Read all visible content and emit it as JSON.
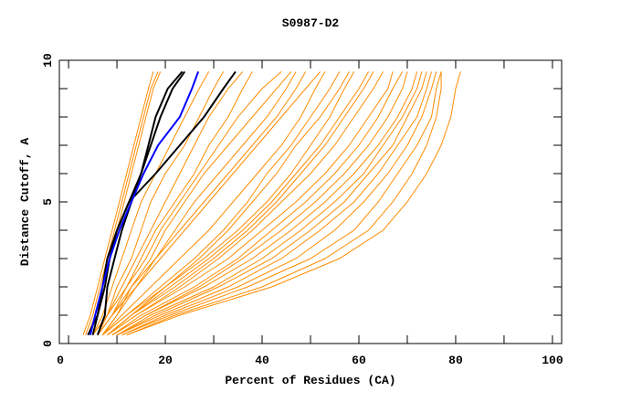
{
  "chart_data": {
    "type": "line",
    "title": "S0987-D2",
    "xlabel": "Percent of Residues (CA)",
    "ylabel": "Distance Cutoff, A",
    "xlim": [
      -1.9,
      101.9
    ],
    "ylim": [
      0,
      10
    ],
    "xticks": [
      0,
      20,
      40,
      60,
      80,
      100
    ],
    "xtick_labels": [
      "0",
      "20",
      "40",
      "60",
      "80",
      "100"
    ],
    "yticks": [
      0,
      5,
      10
    ],
    "ytick_labels": [
      "0",
      "5",
      "10"
    ],
    "grid": false,
    "colors": {
      "others": "#ff8c00",
      "highlight_black": "#000000",
      "highlight_blue": "#0000ff"
    },
    "y_levels": [
      0.3,
      1,
      2,
      3,
      4,
      5,
      6,
      7,
      8,
      9,
      9.6
    ],
    "series": [
      {
        "color": "orange",
        "x": [
          3,
          4.5,
          6,
          7.5,
          9,
          10.5,
          12,
          13.5,
          15,
          16.5,
          17.5
        ]
      },
      {
        "color": "orange",
        "x": [
          3.5,
          5,
          6.5,
          8,
          9.5,
          11,
          12.5,
          14,
          15.5,
          17,
          18.5
        ]
      },
      {
        "color": "orange",
        "x": [
          4,
          5.5,
          7,
          8.5,
          10,
          11.5,
          13,
          14.5,
          16,
          17.5,
          19
        ]
      },
      {
        "color": "orange",
        "x": [
          5,
          7,
          9,
          11,
          13,
          15,
          18,
          21,
          24,
          27,
          29
        ]
      },
      {
        "color": "orange",
        "x": [
          5,
          8,
          10,
          13,
          15,
          17,
          20,
          24,
          27,
          30,
          32
        ]
      },
      {
        "color": "orange",
        "x": [
          6,
          8,
          11,
          14,
          17,
          20,
          23,
          26,
          29,
          33,
          36
        ]
      },
      {
        "color": "orange",
        "x": [
          6,
          9,
          12,
          15,
          18,
          22,
          26,
          29,
          33,
          36,
          38
        ]
      },
      {
        "color": "orange",
        "x": [
          6,
          9,
          13,
          17,
          20,
          24,
          28,
          33,
          38,
          43,
          46
        ]
      },
      {
        "color": "orange",
        "x": [
          7,
          10,
          14,
          18,
          22,
          26,
          31,
          36,
          41,
          45,
          47
        ]
      },
      {
        "color": "orange",
        "x": [
          7,
          10,
          13,
          18,
          23,
          28,
          33,
          38,
          43,
          47,
          49
        ]
      },
      {
        "color": "orange",
        "x": [
          7,
          11,
          17,
          23,
          29,
          34,
          39,
          44,
          48,
          51,
          53
        ]
      },
      {
        "color": "orange",
        "x": [
          7,
          12,
          19,
          26,
          32,
          37,
          41,
          46,
          50,
          54,
          56
        ]
      },
      {
        "color": "orange",
        "x": [
          7,
          12,
          20,
          28,
          35,
          41,
          46,
          50,
          54,
          57,
          59
        ]
      },
      {
        "color": "orange",
        "x": [
          8,
          13,
          22,
          30,
          37,
          43,
          48,
          53,
          57,
          61,
          63
        ]
      },
      {
        "color": "orange",
        "x": [
          8,
          14,
          23,
          31,
          38,
          44,
          50,
          55,
          59,
          63,
          65
        ]
      },
      {
        "color": "orange",
        "x": [
          8,
          14,
          24,
          33,
          40,
          47,
          53,
          58,
          62,
          66,
          67
        ]
      },
      {
        "color": "orange",
        "x": [
          9,
          15,
          26,
          35,
          42,
          49,
          55,
          60,
          64,
          67,
          69
        ]
      },
      {
        "color": "orange",
        "x": [
          9,
          16,
          27,
          36,
          44,
          51,
          57,
          62,
          66,
          69,
          70
        ]
      },
      {
        "color": "orange",
        "x": [
          9,
          16,
          28,
          38,
          46,
          53,
          59,
          64,
          68,
          71,
          72
        ]
      },
      {
        "color": "orange",
        "x": [
          10,
          17,
          30,
          40,
          48,
          55,
          61,
          65,
          69,
          72,
          73
        ]
      },
      {
        "color": "orange",
        "x": [
          10,
          18,
          31,
          42,
          50,
          57,
          62,
          67,
          70,
          73,
          74
        ]
      },
      {
        "color": "orange",
        "x": [
          10,
          19,
          33,
          44,
          52,
          59,
          64,
          68,
          72,
          74,
          75
        ]
      },
      {
        "color": "orange",
        "x": [
          11,
          20,
          35,
          47,
          55,
          61,
          66,
          70,
          73,
          75,
          76
        ]
      },
      {
        "color": "orange",
        "x": [
          11,
          21,
          37,
          50,
          59,
          64,
          68,
          72,
          75,
          76,
          77
        ]
      },
      {
        "color": "orange",
        "x": [
          12,
          22,
          40,
          53,
          62,
          67,
          71,
          74,
          76,
          77,
          77
        ]
      },
      {
        "color": "orange",
        "x": [
          12,
          23,
          42,
          56,
          65,
          70,
          74,
          77,
          79,
          80,
          81
        ]
      },
      {
        "color": "orange",
        "x": [
          8,
          13,
          20,
          27,
          33,
          38,
          43,
          47,
          52,
          56,
          58
        ]
      },
      {
        "color": "orange",
        "x": [
          8,
          13,
          21,
          29,
          36,
          42,
          47,
          52,
          56,
          60,
          62
        ]
      },
      {
        "color": "orange",
        "x": [
          5,
          8,
          12,
          16,
          19,
          23,
          27,
          31,
          35,
          40,
          44
        ]
      },
      {
        "color": "orange",
        "x": [
          6,
          9,
          14,
          19,
          24,
          29,
          34,
          39,
          44,
          49,
          52
        ]
      },
      {
        "color": "black",
        "x": [
          4,
          6,
          7,
          8,
          10,
          12.5,
          15,
          16.5,
          18,
          20.5,
          23.5
        ]
      },
      {
        "color": "black",
        "x": [
          6,
          7.5,
          8,
          9.5,
          11,
          13,
          15,
          17,
          19,
          21.5,
          24
        ]
      },
      {
        "color": "black",
        "x": [
          5,
          6,
          7.5,
          8.5,
          10,
          12.5,
          18,
          23,
          28,
          32,
          34.5
        ]
      },
      {
        "color": "blue",
        "x": [
          4.5,
          5.5,
          7,
          8.5,
          10.5,
          13,
          15.5,
          18.5,
          23,
          25.5,
          26.8
        ]
      }
    ]
  }
}
